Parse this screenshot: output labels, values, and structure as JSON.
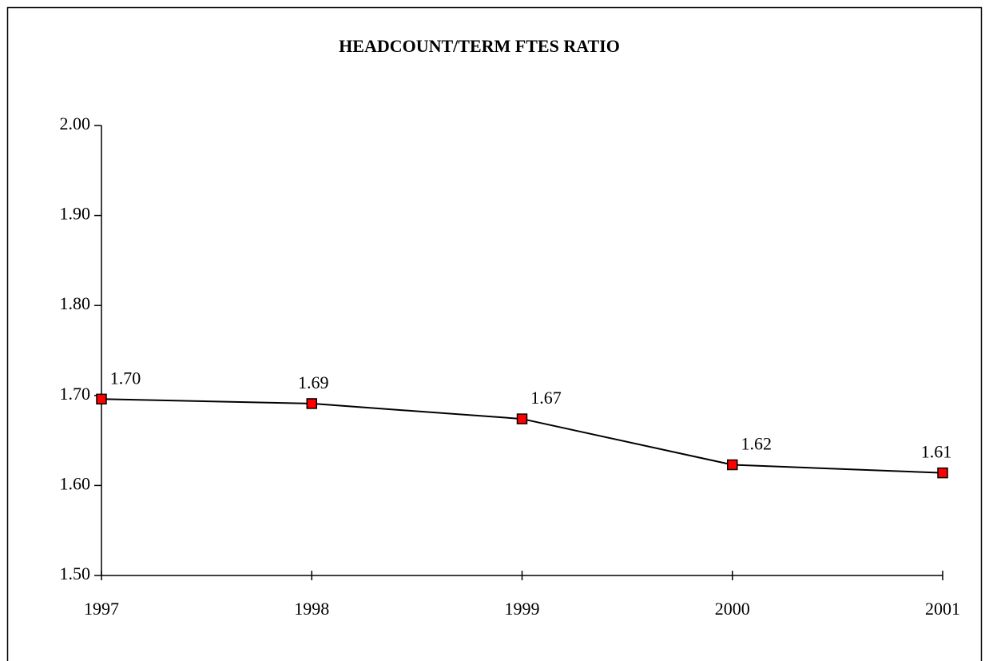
{
  "chart_data": {
    "type": "line",
    "title": "HEADCOUNT/TERM FTES RATIO",
    "x": [
      1997,
      1998,
      1999,
      2000,
      2001
    ],
    "xlim": [
      1997,
      2001
    ],
    "xticks": [
      1997,
      1998,
      1999,
      2000,
      2001
    ],
    "series": [
      {
        "color": "#ff0000",
        "values": [
          1.696,
          1.691,
          1.674,
          1.623,
          1.614
        ],
        "value_labels": [
          "1.70",
          "1.69",
          "1.67",
          "1.62",
          "1.61"
        ]
      }
    ],
    "ylim": [
      1.5,
      2.0
    ],
    "yticks": [
      {
        "value": 1.5,
        "label": "1.50"
      },
      {
        "value": 1.6,
        "label": "1.60"
      },
      {
        "value": 1.7,
        "label": "1.70"
      },
      {
        "value": 1.8,
        "label": "1.80"
      },
      {
        "value": 1.9,
        "label": "1.90"
      },
      {
        "value": 2.0,
        "label": "2.00"
      }
    ],
    "grid": false
  }
}
